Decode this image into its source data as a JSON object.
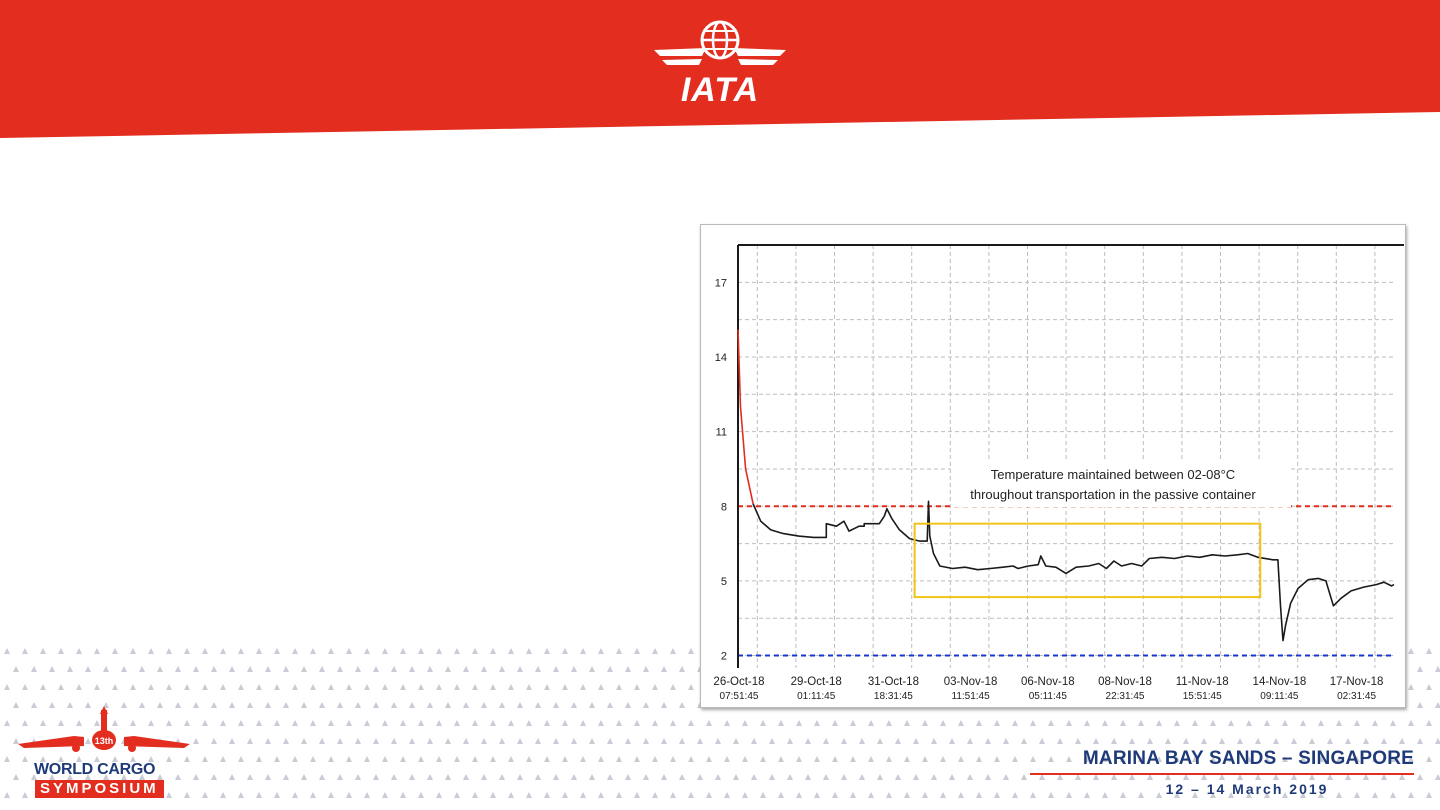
{
  "header": {
    "brand_text": "IATA",
    "brand_color": "#e32d1f",
    "logo_icon": "globe-wings-icon"
  },
  "chart_data": {
    "type": "line",
    "title": "",
    "xlabel": "",
    "ylabel": "",
    "yticks": [
      2,
      5,
      8,
      11,
      14,
      17
    ],
    "ylim": [
      1.5,
      18.5
    ],
    "x_ticks": [
      {
        "date": "26-Oct-18",
        "time": "07:51:45"
      },
      {
        "date": "29-Oct-18",
        "time": "01:11:45"
      },
      {
        "date": "31-Oct-18",
        "time": "18:31:45"
      },
      {
        "date": "03-Nov-18",
        "time": "11:51:45"
      },
      {
        "date": "06-Nov-18",
        "time": "05:11:45"
      },
      {
        "date": "08-Nov-18",
        "time": "22:31:45"
      },
      {
        "date": "11-Nov-18",
        "time": "15:51:45"
      },
      {
        "date": "14-Nov-18",
        "time": "09:11:45"
      },
      {
        "date": "17-Nov-18",
        "time": "02:31:45"
      }
    ],
    "grid": true,
    "limit_lines": [
      {
        "value": 8,
        "color": "#e32d1f",
        "style": "dashed"
      },
      {
        "value": 2,
        "color": "#1a35d6",
        "style": "dashed"
      }
    ],
    "annotation": {
      "text_line1": "Temperature maintained between 02-08°C",
      "text_line2": "throughout transportation in the passive container",
      "box_color": "#f0c419",
      "box_x_range": [
        7.0,
        20.7
      ],
      "box_y_range": [
        4.35,
        7.3
      ]
    },
    "series": [
      {
        "color_high": "#e32d1f",
        "color": "#1a1a1a",
        "points": [
          [
            0.0,
            15.1
          ],
          [
            0.1,
            12.0
          ],
          [
            0.3,
            9.5
          ],
          [
            0.6,
            8.1
          ],
          [
            0.9,
            7.4
          ],
          [
            1.3,
            7.05
          ],
          [
            1.8,
            6.9
          ],
          [
            2.4,
            6.8
          ],
          [
            3.0,
            6.75
          ],
          [
            3.5,
            6.75
          ],
          [
            3.5,
            7.3
          ],
          [
            3.9,
            7.2
          ],
          [
            4.2,
            7.4
          ],
          [
            4.4,
            7.0
          ],
          [
            4.8,
            7.2
          ],
          [
            5.0,
            7.2
          ],
          [
            5.0,
            7.3
          ],
          [
            5.6,
            7.3
          ],
          [
            5.8,
            7.6
          ],
          [
            5.9,
            7.9
          ],
          [
            6.1,
            7.5
          ],
          [
            6.4,
            7.05
          ],
          [
            6.8,
            6.7
          ],
          [
            7.2,
            6.6
          ],
          [
            7.5,
            6.6
          ],
          [
            7.55,
            8.2
          ],
          [
            7.6,
            6.8
          ],
          [
            7.75,
            6.1
          ],
          [
            8.0,
            5.6
          ],
          [
            8.5,
            5.5
          ],
          [
            9.0,
            5.55
          ],
          [
            9.5,
            5.45
          ],
          [
            10.0,
            5.5
          ],
          [
            10.5,
            5.55
          ],
          [
            10.9,
            5.6
          ],
          [
            11.1,
            5.5
          ],
          [
            11.5,
            5.6
          ],
          [
            11.9,
            5.65
          ],
          [
            12.0,
            6.0
          ],
          [
            12.2,
            5.6
          ],
          [
            12.6,
            5.55
          ],
          [
            13.0,
            5.3
          ],
          [
            13.4,
            5.55
          ],
          [
            13.9,
            5.6
          ],
          [
            14.3,
            5.7
          ],
          [
            14.6,
            5.5
          ],
          [
            14.9,
            5.8
          ],
          [
            15.2,
            5.6
          ],
          [
            15.6,
            5.7
          ],
          [
            16.0,
            5.6
          ],
          [
            16.3,
            5.9
          ],
          [
            16.8,
            5.95
          ],
          [
            17.3,
            5.9
          ],
          [
            17.8,
            6.0
          ],
          [
            18.3,
            5.95
          ],
          [
            18.8,
            6.05
          ],
          [
            19.3,
            6.0
          ],
          [
            19.8,
            6.05
          ],
          [
            20.2,
            6.1
          ],
          [
            20.6,
            5.95
          ],
          [
            21.2,
            5.85
          ],
          [
            21.4,
            5.85
          ],
          [
            21.5,
            4.0
          ],
          [
            21.6,
            2.6
          ],
          [
            21.7,
            3.2
          ],
          [
            21.9,
            4.1
          ],
          [
            22.2,
            4.7
          ],
          [
            22.6,
            5.05
          ],
          [
            23.0,
            5.1
          ],
          [
            23.3,
            5.0
          ],
          [
            23.6,
            4.0
          ],
          [
            23.9,
            4.3
          ],
          [
            24.3,
            4.6
          ],
          [
            24.8,
            4.75
          ],
          [
            25.3,
            4.85
          ],
          [
            25.6,
            4.95
          ],
          [
            25.9,
            4.8
          ],
          [
            26.0,
            4.85
          ]
        ]
      }
    ]
  },
  "footer": {
    "event_line1": "WORLD CARGO",
    "event_line2": "SYMPOSIUM",
    "edition_badge": "13th",
    "venue": "MARINA BAY SANDS – SINGAPORE",
    "dates": "12 – 14 March 2019"
  }
}
